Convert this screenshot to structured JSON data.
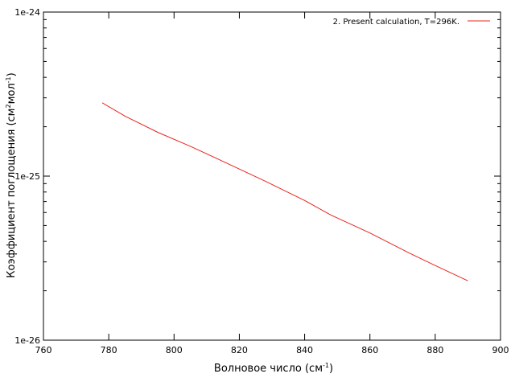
{
  "chart_data": {
    "type": "line",
    "xlabel": "Волновое число (см",
    "xlabel_sup": "-1",
    "xlabel_end": ")",
    "ylabel": "Коэффициент поглощения (см",
    "ylabel_sup1": "2",
    "ylabel_mid": "мол",
    "ylabel_sup2": "-1",
    "ylabel_end": ")",
    "xlim": [
      760,
      900
    ],
    "ylim": [
      1e-26,
      1e-24
    ],
    "yscale": "log",
    "x_ticks": [
      "760",
      "780",
      "800",
      "820",
      "840",
      "860",
      "880",
      "900"
    ],
    "y_ticks": [
      "1e-26",
      "1e-25",
      "1e-24"
    ],
    "legend_position": "top-right",
    "series": [
      {
        "name": "2. Present calculation, T=296K.",
        "color": "#e8251f",
        "x": [
          778,
          785,
          795,
          805,
          815,
          828,
          840,
          848,
          860,
          872,
          880,
          890
        ],
        "y": [
          2.8e-25,
          2.32e-25,
          1.85e-25,
          1.52e-25,
          1.23e-25,
          9.3e-26,
          7.1e-26,
          5.8e-26,
          4.5e-26,
          3.4e-26,
          2.85e-26,
          2.3e-26
        ]
      }
    ]
  }
}
